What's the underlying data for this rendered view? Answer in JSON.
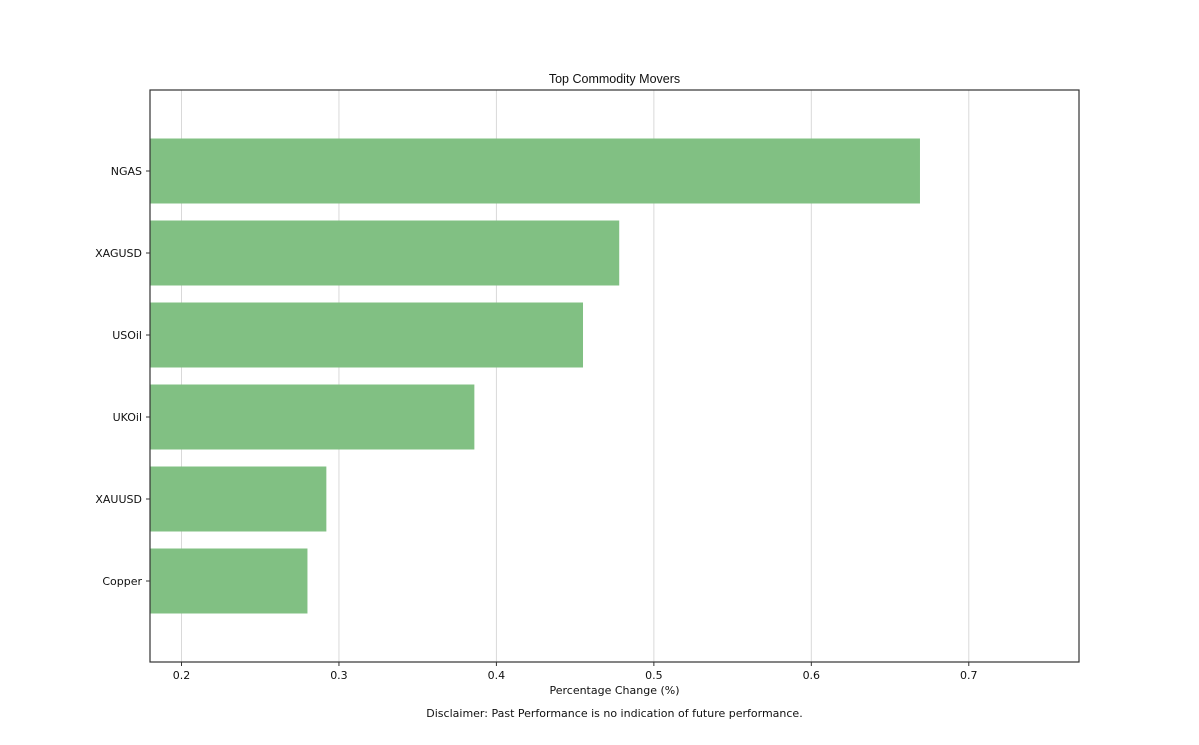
{
  "chart_data": {
    "type": "bar",
    "orientation": "horizontal",
    "title": "Top Commodity Movers",
    "xlabel": "Percentage Change (%)",
    "ylabel": "",
    "categories": [
      "NGAS",
      "XAGUSD",
      "USOil",
      "UKOil",
      "XAUUSD",
      "Copper"
    ],
    "values": [
      0.669,
      0.478,
      0.455,
      0.386,
      0.292,
      0.28
    ],
    "xlim": [
      0.18,
      0.77
    ],
    "xticks": [
      0.2,
      0.3,
      0.4,
      0.5,
      0.6,
      0.7
    ],
    "xtick_labels": [
      "0.2",
      "0.3",
      "0.4",
      "0.5",
      "0.6",
      "0.7"
    ],
    "grid": "vertical",
    "bar_color": "#81c083",
    "legend": "none"
  },
  "footer": {
    "disclaimer": "Disclaimer: Past Performance is no indication of future performance."
  }
}
